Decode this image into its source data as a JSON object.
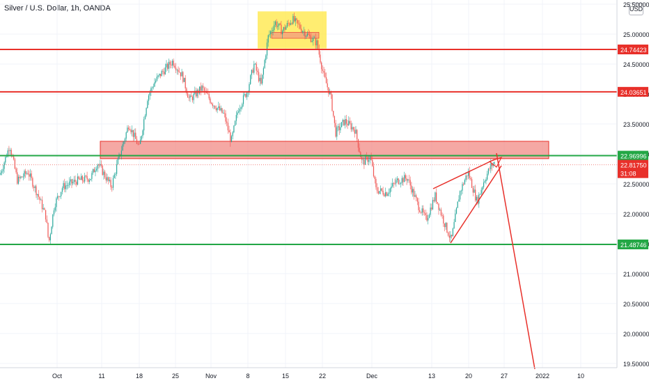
{
  "header": {
    "title": "Silver / U.S. Dollar, 1h, OANDA",
    "currency": "USD"
  },
  "chart_data": {
    "type": "candlestick",
    "symbol": "Silver / U.S. Dollar",
    "interval": "1h",
    "exchange": "OANDA",
    "ylim": [
      19.3,
      25.6
    ],
    "y_ticks": [
      "25.50000",
      "25.00000",
      "24.50000",
      "24.00000",
      "23.50000",
      "23.00000",
      "22.50000",
      "22.00000",
      "21.50000",
      "21.00000",
      "20.50000",
      "20.00000",
      "19.50000"
    ],
    "x_ticks": [
      "Oct",
      "11",
      "18",
      "25",
      "Nov",
      "8",
      "15",
      "22",
      "Dec",
      "13",
      "20",
      "27",
      "2022",
      "10"
    ],
    "levels": [
      {
        "value": 24.74423,
        "label": "24.74423",
        "color": "#e8302a"
      },
      {
        "value": 24.03651,
        "label": "24.03651",
        "color": "#e8302a"
      },
      {
        "value": 22.96996,
        "label": "22.96996",
        "color": "#23a745"
      },
      {
        "value": 21.48746,
        "label": "21.48746",
        "color": "#23a745"
      }
    ],
    "current_price": {
      "value": 22.8175,
      "label": "22.81750",
      "countdown": "31:08",
      "color": "#e8302a"
    },
    "zones": [
      {
        "name": "resistance-zone",
        "from": 22.92,
        "to": 23.21,
        "color": "#f28b85"
      },
      {
        "name": "top-consolidation",
        "from": 24.76,
        "to": 25.38,
        "color": "#ffe84d"
      }
    ],
    "colors": {
      "up": "#26a69a",
      "down": "#ef5350",
      "level_red": "#e8302a",
      "level_green": "#23a745"
    }
  }
}
